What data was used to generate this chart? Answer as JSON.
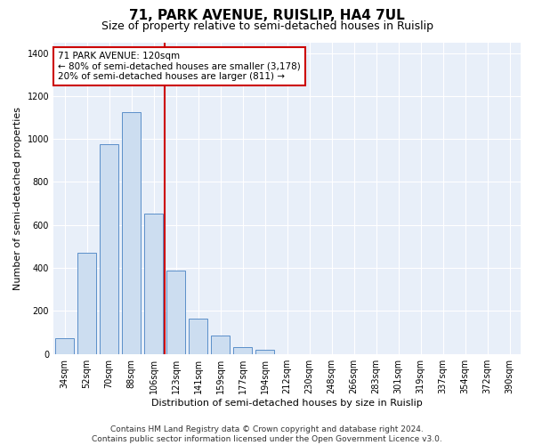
{
  "title": "71, PARK AVENUE, RUISLIP, HA4 7UL",
  "subtitle": "Size of property relative to semi-detached houses in Ruislip",
  "xlabel": "Distribution of semi-detached houses by size in Ruislip",
  "ylabel": "Number of semi-detached properties",
  "categories": [
    "34sqm",
    "52sqm",
    "70sqm",
    "88sqm",
    "106sqm",
    "123sqm",
    "141sqm",
    "159sqm",
    "177sqm",
    "194sqm",
    "212sqm",
    "230sqm",
    "248sqm",
    "266sqm",
    "283sqm",
    "301sqm",
    "319sqm",
    "337sqm",
    "354sqm",
    "372sqm",
    "390sqm"
  ],
  "values": [
    75,
    470,
    975,
    1125,
    655,
    390,
    165,
    85,
    30,
    20,
    0,
    0,
    0,
    0,
    0,
    0,
    0,
    0,
    0,
    0,
    0
  ],
  "bar_color": "#ccddf0",
  "bar_edge_color": "#5b8fc9",
  "vline_index": 4.5,
  "vline_color": "#cc0000",
  "annotation_text": "71 PARK AVENUE: 120sqm\n← 80% of semi-detached houses are smaller (3,178)\n20% of semi-detached houses are larger (811) →",
  "annotation_box_color": "#ffffff",
  "annotation_box_edge": "#cc0000",
  "footer": "Contains HM Land Registry data © Crown copyright and database right 2024.\nContains public sector information licensed under the Open Government Licence v3.0.",
  "ylim": [
    0,
    1450
  ],
  "yticks": [
    0,
    200,
    400,
    600,
    800,
    1000,
    1200,
    1400
  ],
  "background_color": "#e8eff9",
  "grid_color": "#ffffff",
  "title_fontsize": 11,
  "subtitle_fontsize": 9,
  "axis_label_fontsize": 8,
  "tick_fontsize": 7,
  "annotation_fontsize": 7.5,
  "footer_fontsize": 6.5
}
